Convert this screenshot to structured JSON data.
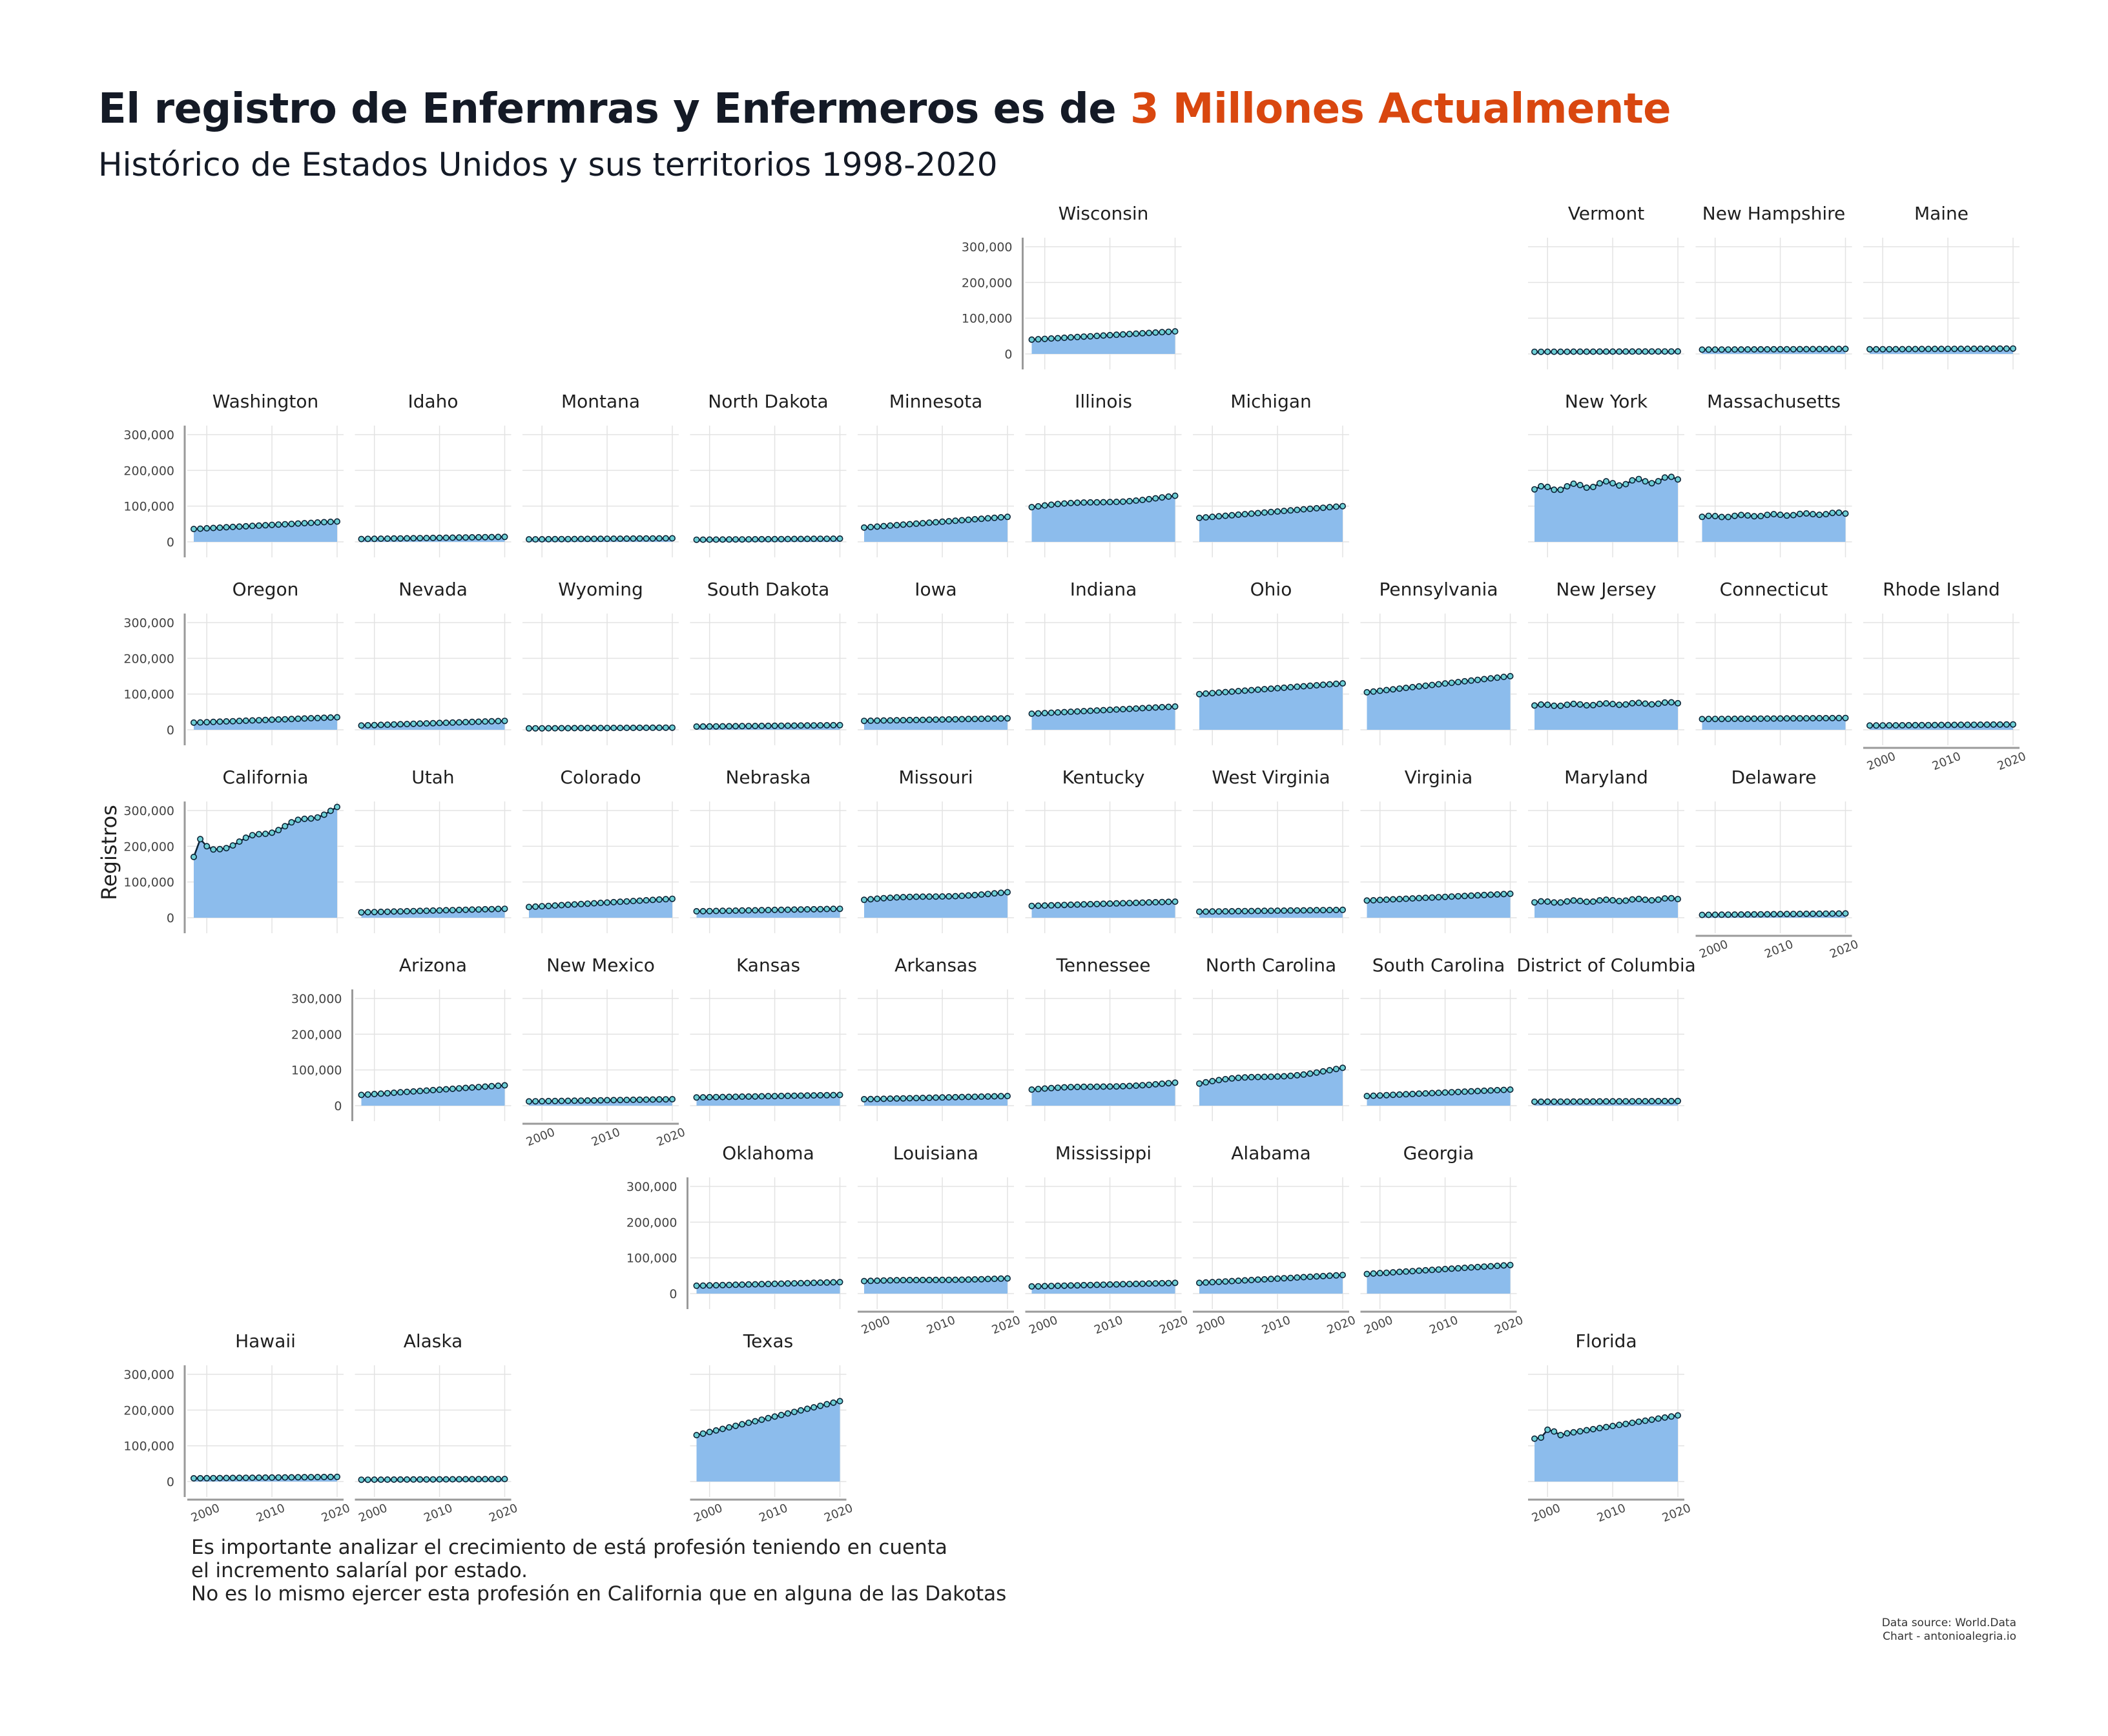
{
  "title": {
    "main": "El registro de Enfermras y Enfermeros es de ",
    "highlight": "3 Millones Actualmente",
    "highlight_color": "#d9470f"
  },
  "subtitle": "Histórico de Estados Unidos y sus territorios 1998-2020",
  "caption": [
    "Es importante analizar el crecimiento de está profesión teniendo en cuenta",
    "el incremento salaríal por estado.",
    "No es lo mismo ejercer esta profesión en California que en alguna de las Dakotas"
  ],
  "source": [
    "Data source: World.Data",
    "Chart - antonioalegria.io"
  ],
  "colors": {
    "area": "#8cbcec",
    "line": "#0b2235",
    "point_fill": "#6fd0d6",
    "grid": "#e3e3e3",
    "axis": "#9a9a9a"
  },
  "chart_data": {
    "type": "area",
    "layout": "geo-facet small multiples (US state grid)",
    "ylabel": "Registros",
    "xlabel": "",
    "xlim": [
      1998,
      2020
    ],
    "ylim": [
      0,
      300000
    ],
    "x_ticks": [
      2000,
      2010,
      2020
    ],
    "y_ticks": [
      0,
      100000,
      200000,
      300000
    ],
    "y_tick_labels": [
      "0",
      "100,000",
      "200,000",
      "300,000"
    ],
    "points_per_series": 23,
    "panels": [
      {
        "name": "Wisconsin",
        "row": 0,
        "col": 5,
        "start": 40000,
        "end": 63000,
        "shape": "smooth"
      },
      {
        "name": "Vermont",
        "row": 0,
        "col": 8,
        "start": 6000,
        "end": 7000,
        "shape": "smooth"
      },
      {
        "name": "New Hampshire",
        "row": 0,
        "col": 9,
        "start": 12000,
        "end": 14000,
        "shape": "smooth"
      },
      {
        "name": "Maine",
        "row": 0,
        "col": 10,
        "start": 13000,
        "end": 15000,
        "shape": "smooth"
      },
      {
        "name": "Washington",
        "row": 1,
        "col": 0,
        "start": 36000,
        "end": 57000,
        "shape": "smooth"
      },
      {
        "name": "Idaho",
        "row": 1,
        "col": 1,
        "start": 8000,
        "end": 14000,
        "shape": "smooth"
      },
      {
        "name": "Montana",
        "row": 1,
        "col": 2,
        "start": 7000,
        "end": 10000,
        "shape": "smooth"
      },
      {
        "name": "North Dakota",
        "row": 1,
        "col": 3,
        "start": 6000,
        "end": 9000,
        "shape": "smooth"
      },
      {
        "name": "Minnesota",
        "row": 1,
        "col": 4,
        "start": 40000,
        "end": 70000,
        "shape": "smooth"
      },
      {
        "name": "Illinois",
        "row": 1,
        "col": 5,
        "start": 97000,
        "end": 127000,
        "shape": "bump"
      },
      {
        "name": "Michigan",
        "row": 1,
        "col": 6,
        "start": 67000,
        "end": 100000,
        "shape": "smooth"
      },
      {
        "name": "New York",
        "row": 1,
        "col": 8,
        "start": 147000,
        "end": 177000,
        "shape": "wavy"
      },
      {
        "name": "Massachusetts",
        "row": 1,
        "col": 9,
        "start": 70000,
        "end": 80000,
        "shape": "wavy"
      },
      {
        "name": "Oregon",
        "row": 2,
        "col": 0,
        "start": 20000,
        "end": 35000,
        "shape": "smooth"
      },
      {
        "name": "Nevada",
        "row": 2,
        "col": 1,
        "start": 12000,
        "end": 25000,
        "shape": "smooth"
      },
      {
        "name": "Wyoming",
        "row": 2,
        "col": 2,
        "start": 4000,
        "end": 6000,
        "shape": "smooth"
      },
      {
        "name": "South Dakota",
        "row": 2,
        "col": 3,
        "start": 9000,
        "end": 13000,
        "shape": "smooth"
      },
      {
        "name": "Iowa",
        "row": 2,
        "col": 4,
        "start": 25000,
        "end": 32000,
        "shape": "smooth"
      },
      {
        "name": "Indiana",
        "row": 2,
        "col": 5,
        "start": 45000,
        "end": 65000,
        "shape": "smooth"
      },
      {
        "name": "Ohio",
        "row": 2,
        "col": 6,
        "start": 100000,
        "end": 130000,
        "shape": "smooth"
      },
      {
        "name": "Pennsylvania",
        "row": 2,
        "col": 7,
        "start": 105000,
        "end": 150000,
        "shape": "smooth"
      },
      {
        "name": "New Jersey",
        "row": 2,
        "col": 8,
        "start": 68000,
        "end": 75000,
        "shape": "wavy"
      },
      {
        "name": "Connecticut",
        "row": 2,
        "col": 9,
        "start": 30000,
        "end": 33000,
        "shape": "flat"
      },
      {
        "name": "Rhode Island",
        "row": 2,
        "col": 10,
        "start": 12000,
        "end": 15000,
        "shape": "flat"
      },
      {
        "name": "California",
        "row": 3,
        "col": 0,
        "start": 170000,
        "end": 305000,
        "shape": "ca"
      },
      {
        "name": "Utah",
        "row": 3,
        "col": 1,
        "start": 15000,
        "end": 25000,
        "shape": "smooth"
      },
      {
        "name": "Colorado",
        "row": 3,
        "col": 2,
        "start": 30000,
        "end": 53000,
        "shape": "smooth"
      },
      {
        "name": "Nebraska",
        "row": 3,
        "col": 3,
        "start": 18000,
        "end": 25000,
        "shape": "smooth"
      },
      {
        "name": "Missouri",
        "row": 3,
        "col": 4,
        "start": 50000,
        "end": 70000,
        "shape": "bump"
      },
      {
        "name": "Kentucky",
        "row": 3,
        "col": 5,
        "start": 33000,
        "end": 45000,
        "shape": "smooth"
      },
      {
        "name": "West Virginia",
        "row": 3,
        "col": 6,
        "start": 17000,
        "end": 22000,
        "shape": "smooth"
      },
      {
        "name": "Virginia",
        "row": 3,
        "col": 7,
        "start": 48000,
        "end": 67000,
        "shape": "smooth"
      },
      {
        "name": "Maryland",
        "row": 3,
        "col": 8,
        "start": 43000,
        "end": 53000,
        "shape": "wavy"
      },
      {
        "name": "Delaware",
        "row": 3,
        "col": 9,
        "start": 8000,
        "end": 12000,
        "shape": "smooth"
      },
      {
        "name": "Arizona",
        "row": 4,
        "col": 1,
        "start": 30000,
        "end": 57000,
        "shape": "smooth"
      },
      {
        "name": "New Mexico",
        "row": 4,
        "col": 2,
        "start": 12000,
        "end": 18000,
        "shape": "smooth"
      },
      {
        "name": "Kansas",
        "row": 4,
        "col": 3,
        "start": 23000,
        "end": 30000,
        "shape": "smooth"
      },
      {
        "name": "Arkansas",
        "row": 4,
        "col": 4,
        "start": 18000,
        "end": 27000,
        "shape": "smooth"
      },
      {
        "name": "Tennessee",
        "row": 4,
        "col": 5,
        "start": 45000,
        "end": 63000,
        "shape": "bump"
      },
      {
        "name": "North Carolina",
        "row": 4,
        "col": 6,
        "start": 62000,
        "end": 103000,
        "shape": "bump"
      },
      {
        "name": "South Carolina",
        "row": 4,
        "col": 7,
        "start": 27000,
        "end": 45000,
        "shape": "smooth"
      },
      {
        "name": "District of Columbia",
        "row": 4,
        "col": 8,
        "start": 11000,
        "end": 13000,
        "shape": "flat"
      },
      {
        "name": "Oklahoma",
        "row": 5,
        "col": 3,
        "start": 22000,
        "end": 32000,
        "shape": "smooth"
      },
      {
        "name": "Louisiana",
        "row": 5,
        "col": 4,
        "start": 35000,
        "end": 42000,
        "shape": "bump"
      },
      {
        "name": "Mississippi",
        "row": 5,
        "col": 5,
        "start": 20000,
        "end": 30000,
        "shape": "smooth"
      },
      {
        "name": "Alabama",
        "row": 5,
        "col": 6,
        "start": 30000,
        "end": 52000,
        "shape": "smooth"
      },
      {
        "name": "Georgia",
        "row": 5,
        "col": 7,
        "start": 55000,
        "end": 80000,
        "shape": "smooth"
      },
      {
        "name": "Hawaii",
        "row": 6,
        "col": 0,
        "start": 9000,
        "end": 13000,
        "shape": "flat"
      },
      {
        "name": "Alaska",
        "row": 6,
        "col": 1,
        "start": 5000,
        "end": 7000,
        "shape": "flat"
      },
      {
        "name": "Texas",
        "row": 6,
        "col": 3,
        "start": 130000,
        "end": 225000,
        "shape": "smooth"
      },
      {
        "name": "Florida",
        "row": 6,
        "col": 8,
        "start": 120000,
        "end": 185000,
        "shape": "fl"
      }
    ]
  }
}
